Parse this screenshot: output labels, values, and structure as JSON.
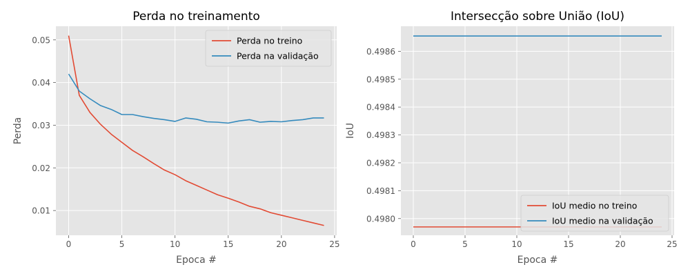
{
  "chart_data": [
    {
      "type": "line",
      "title": "Perda no treinamento",
      "xlabel": "Epoca #",
      "ylabel": "Perda",
      "xlim": [
        -1.2,
        25.2
      ],
      "ylim": [
        0.0042,
        0.0532
      ],
      "xticks": [
        0,
        5,
        10,
        15,
        20,
        25
      ],
      "xtick_labels": [
        "0",
        "5",
        "10",
        "15",
        "20",
        "25"
      ],
      "yticks": [
        0.01,
        0.02,
        0.03,
        0.04,
        0.05
      ],
      "ytick_labels": [
        "0.01",
        "0.02",
        "0.03",
        "0.04",
        "0.05"
      ],
      "grid": true,
      "legend": "top-right",
      "x": [
        0,
        1,
        2,
        3,
        4,
        5,
        6,
        7,
        8,
        9,
        10,
        11,
        12,
        13,
        14,
        15,
        16,
        17,
        18,
        19,
        20,
        21,
        22,
        23,
        24
      ],
      "series": [
        {
          "name": "Perda no treino",
          "color": "#e24a33",
          "values": [
            0.051,
            0.037,
            0.033,
            0.0302,
            0.0279,
            0.026,
            0.0241,
            0.0226,
            0.021,
            0.0195,
            0.0184,
            0.017,
            0.0159,
            0.0148,
            0.0137,
            0.0129,
            0.012,
            0.011,
            0.0104,
            0.0095,
            0.0089,
            0.0083,
            0.0077,
            0.0071,
            0.0065
          ]
        },
        {
          "name": "Perda na validação",
          "color": "#348abd",
          "values": [
            0.042,
            0.038,
            0.0362,
            0.0346,
            0.0337,
            0.0325,
            0.0325,
            0.032,
            0.0316,
            0.0313,
            0.0309,
            0.0317,
            0.0314,
            0.0308,
            0.0307,
            0.0305,
            0.031,
            0.0313,
            0.0307,
            0.0309,
            0.0308,
            0.0311,
            0.0313,
            0.0317,
            0.0317
          ]
        }
      ]
    },
    {
      "type": "line",
      "title": "Intersecção sobre União (IoU)",
      "xlabel": "Epoca #",
      "ylabel": "IoU",
      "xlim": [
        -1.2,
        25.2
      ],
      "ylim": [
        0.49794,
        0.49869
      ],
      "xticks": [
        0,
        5,
        10,
        15,
        20,
        25
      ],
      "xtick_labels": [
        "0",
        "5",
        "10",
        "15",
        "20",
        "25"
      ],
      "yticks": [
        0.498,
        0.4981,
        0.4982,
        0.4983,
        0.4984,
        0.4985,
        0.4986
      ],
      "ytick_labels": [
        "0.4980",
        "0.4981",
        "0.4982",
        "0.4983",
        "0.4984",
        "0.4985",
        "0.4986"
      ],
      "grid": true,
      "legend": "bottom-right",
      "x": [
        0,
        1,
        2,
        3,
        4,
        5,
        6,
        7,
        8,
        9,
        10,
        11,
        12,
        13,
        14,
        15,
        16,
        17,
        18,
        19,
        20,
        21,
        22,
        23,
        24
      ],
      "series": [
        {
          "name": "IoU medio no treino",
          "color": "#e24a33",
          "values": [
            0.49797,
            0.49797,
            0.49797,
            0.49797,
            0.49797,
            0.49797,
            0.49797,
            0.49797,
            0.49797,
            0.49797,
            0.49797,
            0.49797,
            0.49797,
            0.49797,
            0.49797,
            0.49797,
            0.49797,
            0.49797,
            0.49797,
            0.49797,
            0.49797,
            0.49797,
            0.49797,
            0.49797,
            0.49797
          ]
        },
        {
          "name": "IoU medio na validação",
          "color": "#348abd",
          "values": [
            0.498655,
            0.498655,
            0.498655,
            0.498655,
            0.498655,
            0.498655,
            0.498655,
            0.498655,
            0.498655,
            0.498655,
            0.498655,
            0.498655,
            0.498655,
            0.498655,
            0.498655,
            0.498655,
            0.498655,
            0.498655,
            0.498655,
            0.498655,
            0.498655,
            0.498655,
            0.498655,
            0.498655,
            0.498655
          ]
        }
      ]
    }
  ]
}
